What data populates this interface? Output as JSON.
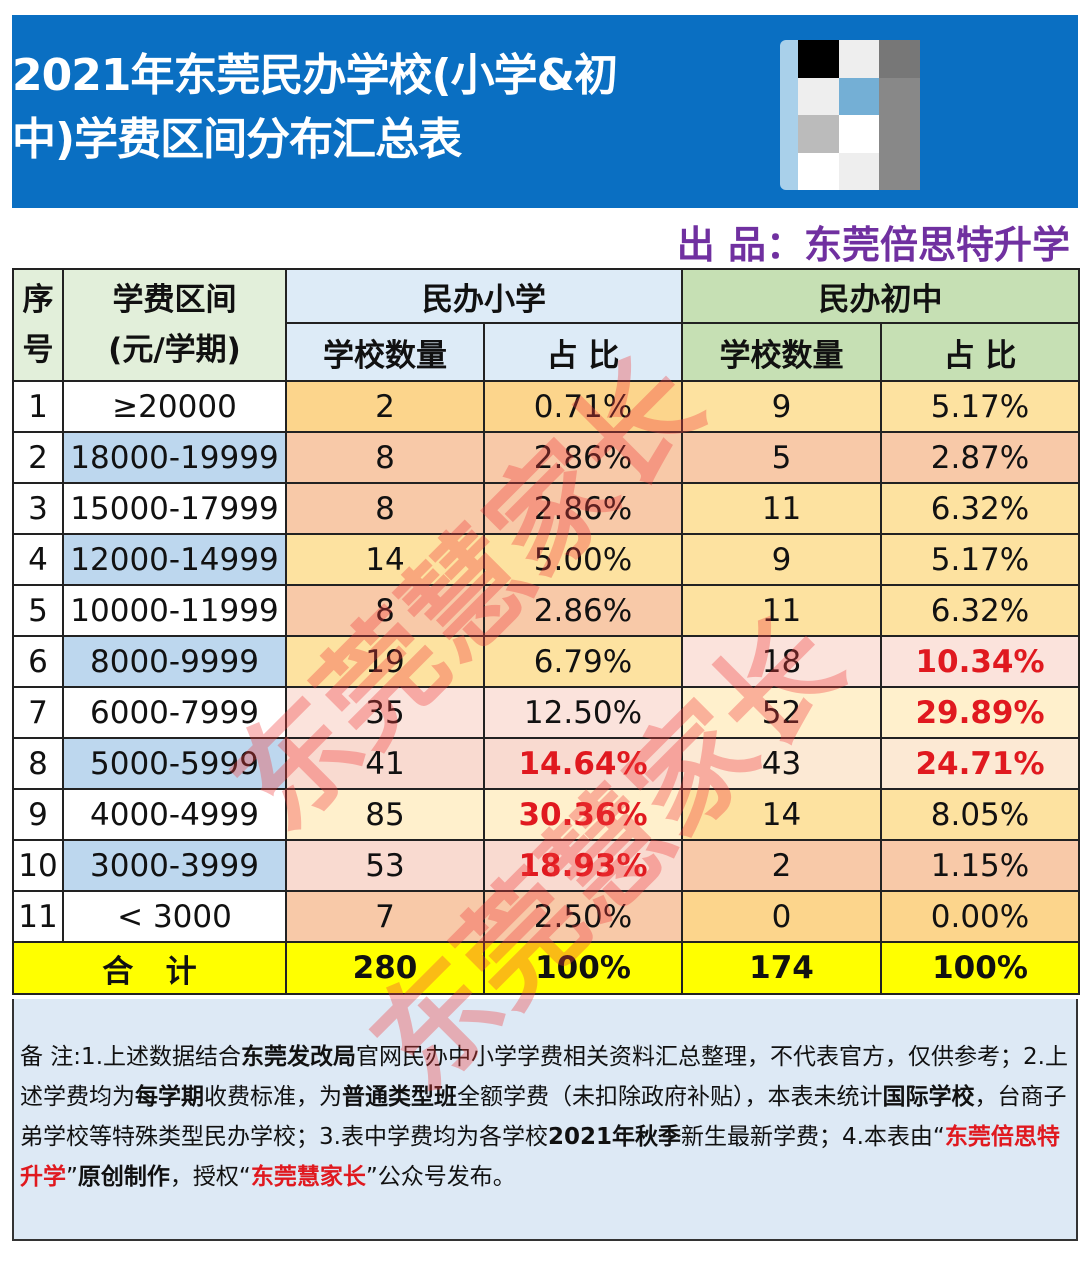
{
  "header": {
    "title": "2021年东莞民办学校(小学&初中)学费区间分布汇总表",
    "producer": "出 品：东莞倍思特升学",
    "banner_color": "#0a6fc2"
  },
  "table": {
    "col_no": "序号",
    "col_range": "学费区间(元/学期)",
    "group_primary": "民办小学",
    "group_junior": "民办初中",
    "sub_count": "学校数量",
    "sub_pct": "占 比",
    "rows": [
      {
        "no": "1",
        "range": "≥20000",
        "p_count": "2",
        "p_pct": "0.71%",
        "j_count": "9",
        "j_pct": "5.17%",
        "p_bg": "#fcd58c",
        "j_bg": "#fde2a0",
        "p_hl": false,
        "j_hl": false
      },
      {
        "no": "2",
        "range": "18000-19999",
        "p_count": "8",
        "p_pct": "2.86%",
        "j_count": "5",
        "j_pct": "2.87%",
        "p_bg": "#f8c9a8",
        "j_bg": "#f8c9a8",
        "p_hl": false,
        "j_hl": false
      },
      {
        "no": "3",
        "range": "15000-17999",
        "p_count": "8",
        "p_pct": "2.86%",
        "j_count": "11",
        "j_pct": "6.32%",
        "p_bg": "#f8c9a8",
        "j_bg": "#fde2a0",
        "p_hl": false,
        "j_hl": false
      },
      {
        "no": "4",
        "range": "12000-14999",
        "p_count": "14",
        "p_pct": "5.00%",
        "j_count": "9",
        "j_pct": "5.17%",
        "p_bg": "#fde2a0",
        "j_bg": "#fde2a0",
        "p_hl": false,
        "j_hl": false
      },
      {
        "no": "5",
        "range": "10000-11999",
        "p_count": "8",
        "p_pct": "2.86%",
        "j_count": "11",
        "j_pct": "6.32%",
        "p_bg": "#f8c9a8",
        "j_bg": "#fde2a0",
        "p_hl": false,
        "j_hl": false
      },
      {
        "no": "6",
        "range": "8000-9999",
        "p_count": "19",
        "p_pct": "6.79%",
        "j_count": "18",
        "j_pct": "10.34%",
        "p_bg": "#fde2a0",
        "j_bg": "#fbe3dc",
        "p_hl": false,
        "j_hl": true
      },
      {
        "no": "7",
        "range": "6000-7999",
        "p_count": "35",
        "p_pct": "12.50%",
        "j_count": "52",
        "j_pct": "29.89%",
        "p_bg": "#fbe3dc",
        "j_bg": "#fff0cc",
        "p_hl": false,
        "j_hl": true
      },
      {
        "no": "8",
        "range": "5000-5999",
        "p_count": "41",
        "p_pct": "14.64%",
        "j_count": "43",
        "j_pct": "24.71%",
        "p_bg": "#f9dad0",
        "j_bg": "#fce9d4",
        "p_hl": true,
        "j_hl": true
      },
      {
        "no": "9",
        "range": "4000-4999",
        "p_count": "85",
        "p_pct": "30.36%",
        "j_count": "14",
        "j_pct": "8.05%",
        "p_bg": "#fff0cc",
        "j_bg": "#fde2a0",
        "p_hl": true,
        "j_hl": false
      },
      {
        "no": "10",
        "range": "3000-3999",
        "p_count": "53",
        "p_pct": "18.93%",
        "j_count": "2",
        "j_pct": "1.15%",
        "p_bg": "#f9dad0",
        "j_bg": "#f8c9a8",
        "p_hl": true,
        "j_hl": false
      },
      {
        "no": "11",
        "range": "< 3000",
        "p_count": "7",
        "p_pct": "2.50%",
        "j_count": "0",
        "j_pct": "0.00%",
        "p_bg": "#f8c9a8",
        "j_bg": "#fcd58c",
        "p_hl": false,
        "j_hl": false
      }
    ],
    "total": {
      "label": "合   计",
      "p_count": "280",
      "p_pct": "100%",
      "j_count": "174",
      "j_pct": "100%"
    }
  },
  "notes": {
    "s1": "备 注:1.上述数据结合",
    "b1": "东莞发改局",
    "s2": "官网民办中小学学费相关资料汇总整理，不代表官方，仅供参考；2.上述学费均为",
    "b2": "每学期",
    "s3": "收费标准，为",
    "b3": "普通类型班",
    "s4": "全额学费（未扣除政府补贴），本表未统计",
    "b4": "国际学校",
    "s5": "，台商子弟学校等特殊类型民办学校；3.表中学费均为各学校",
    "b5": "2021年秋季",
    "s6": "新生最新学费；4.本表由“",
    "r1": "东莞倍思特升学",
    "s7": "”",
    "b6": "原创制作",
    "s8": "，授权“",
    "r2": "东莞慧家长",
    "s9": "”公众号发布。"
  },
  "watermark": "东莞慧家长"
}
